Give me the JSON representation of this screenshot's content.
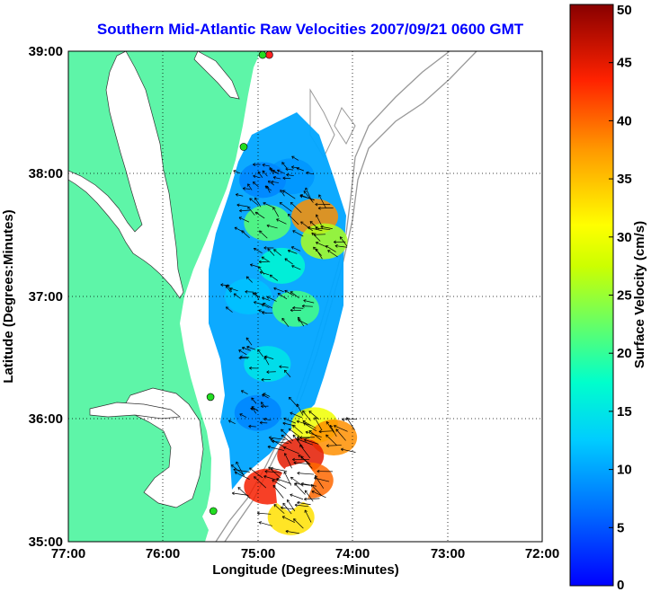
{
  "title": "Southern Mid-Atlantic Raw Velocities 2007/09/21 0600 GMT",
  "x_axis": {
    "label": "Longitude (Degrees:Minutes)",
    "ticks": [
      "77:00",
      "76:00",
      "75:00",
      "74:00",
      "73:00",
      "72:00"
    ]
  },
  "y_axis": {
    "label": "Latitude (Degrees:Minutes)",
    "ticks": [
      "39:00",
      "38:00",
      "37:00",
      "36:00",
      "35:00"
    ]
  },
  "colorbar": {
    "label": "Surface Velocity (cm/s)",
    "ticks": [
      "50",
      "45",
      "40",
      "35",
      "30",
      "25",
      "20",
      "15",
      "10",
      "5",
      "0"
    ],
    "colormap": "jet"
  },
  "colors": {
    "land": "#5ef5a8",
    "water": "#ffffff",
    "title": "#0000ff",
    "station": "#22dd22",
    "station_alert": "#ff2222"
  },
  "chart_data": {
    "type": "heatmap",
    "title": "Southern Mid-Atlantic Raw Velocities 2007/09/21 0600 GMT",
    "xlabel": "Longitude (Degrees:Minutes)",
    "ylabel": "Latitude (Degrees:Minutes)",
    "xlim": [
      -77.0,
      -72.0
    ],
    "ylim": [
      35.0,
      39.0
    ],
    "zlabel": "Surface Velocity (cm/s)",
    "zlim": [
      0,
      50
    ],
    "grid": true,
    "stations": [
      {
        "lon": -74.88,
        "lat": 38.97,
        "status": "alert"
      },
      {
        "lon": -74.95,
        "lat": 38.97,
        "status": "ok"
      },
      {
        "lon": -75.15,
        "lat": 38.22,
        "status": "ok"
      },
      {
        "lon": -75.5,
        "lat": 36.18,
        "status": "ok"
      },
      {
        "lon": -75.47,
        "lat": 35.25,
        "status": "ok"
      }
    ],
    "velocity_field": [
      {
        "lon": -74.65,
        "lat": 37.98,
        "speed": 9
      },
      {
        "lon": -74.95,
        "lat": 37.95,
        "speed": 8
      },
      {
        "lon": -74.4,
        "lat": 37.65,
        "speed": 38
      },
      {
        "lon": -74.9,
        "lat": 37.6,
        "speed": 22
      },
      {
        "lon": -74.3,
        "lat": 37.45,
        "speed": 26
      },
      {
        "lon": -74.75,
        "lat": 37.25,
        "speed": 17
      },
      {
        "lon": -75.1,
        "lat": 37.0,
        "speed": 12
      },
      {
        "lon": -74.6,
        "lat": 36.9,
        "speed": 21
      },
      {
        "lon": -74.9,
        "lat": 36.45,
        "speed": 15
      },
      {
        "lon": -75.0,
        "lat": 36.05,
        "speed": 8
      },
      {
        "lon": -74.4,
        "lat": 35.95,
        "speed": 30
      },
      {
        "lon": -74.2,
        "lat": 35.85,
        "speed": 38
      },
      {
        "lon": -74.55,
        "lat": 35.7,
        "speed": 45
      },
      {
        "lon": -74.45,
        "lat": 35.5,
        "speed": 40
      },
      {
        "lon": -74.9,
        "lat": 35.45,
        "speed": 44
      },
      {
        "lon": -74.65,
        "lat": 35.2,
        "speed": 33
      }
    ]
  }
}
